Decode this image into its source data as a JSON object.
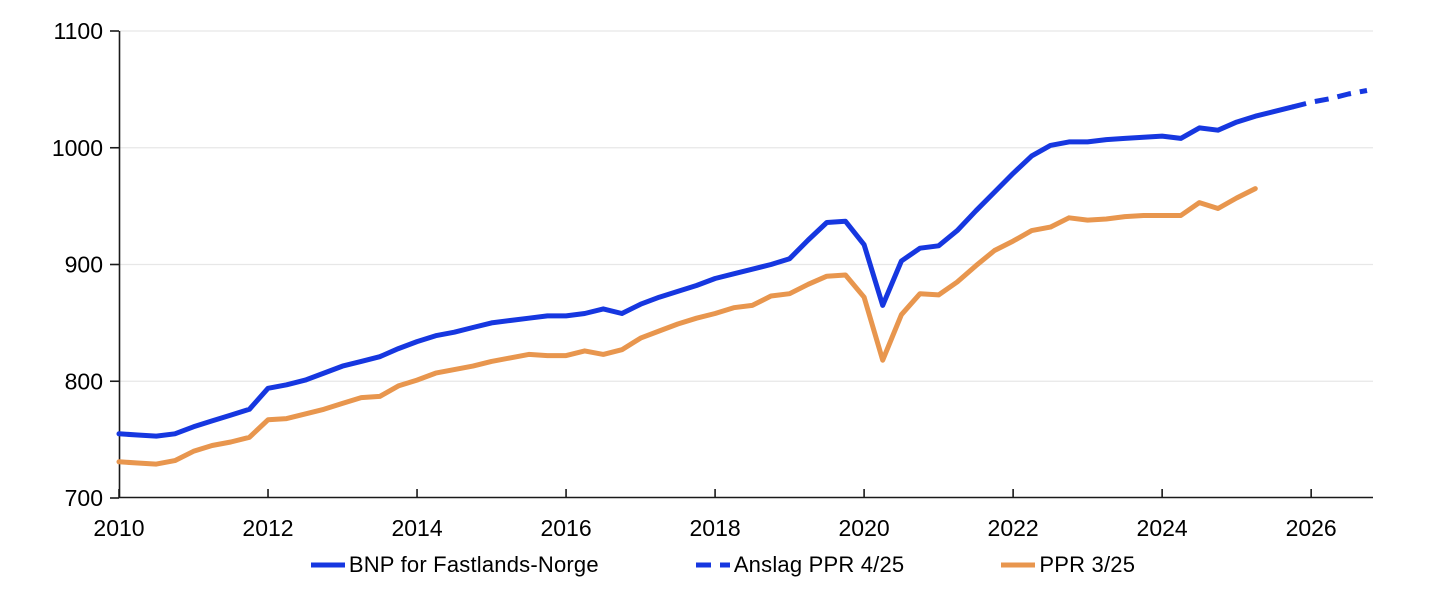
{
  "chart_data": {
    "type": "line",
    "title": "",
    "xlabel": "",
    "ylabel": "",
    "xlim": [
      2010,
      2026.83
    ],
    "ylim": [
      700,
      1100
    ],
    "xticks": [
      2010,
      2012,
      2014,
      2016,
      2018,
      2020,
      2022,
      2024,
      2026
    ],
    "yticks": [
      700,
      800,
      900,
      1000,
      1100
    ],
    "grid": "horizontal",
    "grid_color": "#e7e7e7",
    "axis_color": "#1a1a1a",
    "tick_label_color": "#000000",
    "legend_position": "bottom",
    "series": [
      {
        "name": "BNP for Fastlands-Norge",
        "color": "#1637e0",
        "style": "solid",
        "points": [
          [
            2010.0,
            755
          ],
          [
            2010.25,
            754
          ],
          [
            2010.5,
            753
          ],
          [
            2010.75,
            755
          ],
          [
            2011.0,
            761
          ],
          [
            2011.25,
            766
          ],
          [
            2011.5,
            771
          ],
          [
            2011.75,
            776
          ],
          [
            2012.0,
            794
          ],
          [
            2012.25,
            797
          ],
          [
            2012.5,
            801
          ],
          [
            2012.75,
            807
          ],
          [
            2013.0,
            813
          ],
          [
            2013.25,
            817
          ],
          [
            2013.5,
            821
          ],
          [
            2013.75,
            828
          ],
          [
            2014.0,
            834
          ],
          [
            2014.25,
            839
          ],
          [
            2014.5,
            842
          ],
          [
            2014.75,
            846
          ],
          [
            2015.0,
            850
          ],
          [
            2015.25,
            852
          ],
          [
            2015.5,
            854
          ],
          [
            2015.75,
            856
          ],
          [
            2016.0,
            856
          ],
          [
            2016.25,
            858
          ],
          [
            2016.5,
            862
          ],
          [
            2016.75,
            858
          ],
          [
            2017.0,
            866
          ],
          [
            2017.25,
            872
          ],
          [
            2017.5,
            877
          ],
          [
            2017.75,
            882
          ],
          [
            2018.0,
            888
          ],
          [
            2018.25,
            892
          ],
          [
            2018.5,
            896
          ],
          [
            2018.75,
            900
          ],
          [
            2019.0,
            905
          ],
          [
            2019.25,
            921
          ],
          [
            2019.5,
            936
          ],
          [
            2019.75,
            937
          ],
          [
            2020.0,
            917
          ],
          [
            2020.25,
            865
          ],
          [
            2020.5,
            903
          ],
          [
            2020.75,
            914
          ],
          [
            2021.0,
            916
          ],
          [
            2021.25,
            929
          ],
          [
            2021.5,
            946
          ],
          [
            2021.75,
            962
          ],
          [
            2022.0,
            978
          ],
          [
            2022.25,
            993
          ],
          [
            2022.5,
            1002
          ],
          [
            2022.75,
            1005
          ],
          [
            2023.0,
            1005
          ],
          [
            2023.25,
            1007
          ],
          [
            2023.5,
            1008
          ],
          [
            2023.75,
            1009
          ],
          [
            2024.0,
            1010
          ],
          [
            2024.25,
            1008
          ],
          [
            2024.5,
            1017
          ],
          [
            2024.75,
            1015
          ],
          [
            2025.0,
            1022
          ],
          [
            2025.25,
            1027
          ],
          [
            2025.5,
            1031
          ],
          [
            2025.75,
            1035
          ]
        ]
      },
      {
        "name": "Anslag PPR 4/25",
        "color": "#1637e0",
        "style": "dashed",
        "points": [
          [
            2025.75,
            1035
          ],
          [
            2026.0,
            1039
          ],
          [
            2026.25,
            1042
          ],
          [
            2026.5,
            1046
          ],
          [
            2026.75,
            1049
          ]
        ]
      },
      {
        "name": "PPR 3/25",
        "color": "#e8964e",
        "style": "solid",
        "points": [
          [
            2010.0,
            731
          ],
          [
            2010.25,
            730
          ],
          [
            2010.5,
            729
          ],
          [
            2010.75,
            732
          ],
          [
            2011.0,
            740
          ],
          [
            2011.25,
            745
          ],
          [
            2011.5,
            748
          ],
          [
            2011.75,
            752
          ],
          [
            2012.0,
            767
          ],
          [
            2012.25,
            768
          ],
          [
            2012.5,
            772
          ],
          [
            2012.75,
            776
          ],
          [
            2013.0,
            781
          ],
          [
            2013.25,
            786
          ],
          [
            2013.5,
            787
          ],
          [
            2013.75,
            796
          ],
          [
            2014.0,
            801
          ],
          [
            2014.25,
            807
          ],
          [
            2014.5,
            810
          ],
          [
            2014.75,
            813
          ],
          [
            2015.0,
            817
          ],
          [
            2015.25,
            820
          ],
          [
            2015.5,
            823
          ],
          [
            2015.75,
            822
          ],
          [
            2016.0,
            822
          ],
          [
            2016.25,
            826
          ],
          [
            2016.5,
            823
          ],
          [
            2016.75,
            827
          ],
          [
            2017.0,
            837
          ],
          [
            2017.25,
            843
          ],
          [
            2017.5,
            849
          ],
          [
            2017.75,
            854
          ],
          [
            2018.0,
            858
          ],
          [
            2018.25,
            863
          ],
          [
            2018.5,
            865
          ],
          [
            2018.75,
            873
          ],
          [
            2019.0,
            875
          ],
          [
            2019.25,
            883
          ],
          [
            2019.5,
            890
          ],
          [
            2019.75,
            891
          ],
          [
            2020.0,
            872
          ],
          [
            2020.25,
            818
          ],
          [
            2020.5,
            857
          ],
          [
            2020.75,
            875
          ],
          [
            2021.0,
            874
          ],
          [
            2021.25,
            885
          ],
          [
            2021.5,
            899
          ],
          [
            2021.75,
            912
          ],
          [
            2022.0,
            920
          ],
          [
            2022.25,
            929
          ],
          [
            2022.5,
            932
          ],
          [
            2022.75,
            940
          ],
          [
            2023.0,
            938
          ],
          [
            2023.25,
            939
          ],
          [
            2023.5,
            941
          ],
          [
            2023.75,
            942
          ],
          [
            2024.0,
            942
          ],
          [
            2024.25,
            942
          ],
          [
            2024.5,
            953
          ],
          [
            2024.75,
            948
          ],
          [
            2025.0,
            957
          ],
          [
            2025.25,
            965
          ]
        ]
      }
    ]
  }
}
